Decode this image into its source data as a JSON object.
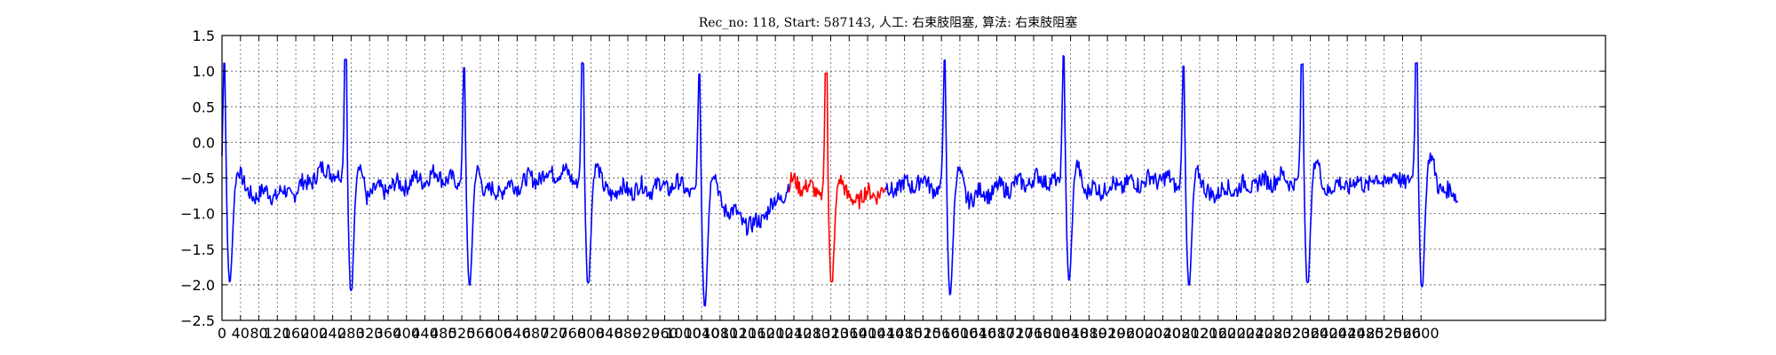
{
  "chart_data": {
    "type": "line",
    "title": "Rec_no: 118, Start: 587143, 人工: 右束肢阻塞, 算法: 右束肢阻塞",
    "xlabel": "",
    "ylabel": "",
    "xlim": [
      0,
      3000
    ],
    "ylim": [
      -2.5,
      1.5
    ],
    "x_ticks": [
      0,
      40,
      80,
      120,
      160,
      200,
      240,
      280,
      320,
      360,
      400,
      440,
      480,
      520,
      560,
      600,
      640,
      680,
      720,
      760,
      800,
      840,
      880,
      920,
      960,
      1000,
      1040,
      1080,
      1120,
      1160,
      1200,
      1240,
      1280,
      1320,
      1360,
      1400,
      1440,
      1480,
      1520,
      1560,
      1600,
      1640,
      1680,
      1720,
      1760,
      1800,
      1840,
      1880,
      1920,
      1960,
      2000,
      2040,
      2080,
      2120,
      2160,
      2200,
      2240,
      2280,
      2320,
      2360,
      2400,
      2440,
      2480,
      2520,
      2560,
      2600
    ],
    "y_ticks": [
      -2.5,
      -2.0,
      -1.5,
      -1.0,
      -0.5,
      0.0,
      0.5,
      1.0,
      1.5
    ],
    "y_tick_labels": [
      "−2.5",
      "−2.0",
      "−1.5",
      "−1.0",
      "−0.5",
      "0.0",
      "0.5",
      "1.0",
      "1.5"
    ],
    "grid": true,
    "beats": [
      {
        "r": 5,
        "amp": 1.12,
        "min": -2.0
      },
      {
        "r": 268,
        "amp": 1.17,
        "min": -2.1
      },
      {
        "r": 525,
        "amp": 1.07,
        "min": -2.05
      },
      {
        "r": 782,
        "amp": 1.12,
        "min": -2.0
      },
      {
        "r": 1035,
        "amp": 0.97,
        "min": -2.33
      },
      {
        "r": 1310,
        "amp": 0.98,
        "min": -2.0
      },
      {
        "r": 1567,
        "amp": 1.18,
        "min": -2.17
      },
      {
        "r": 1825,
        "amp": 1.22,
        "min": -1.97
      },
      {
        "r": 2085,
        "amp": 1.07,
        "min": -2.05
      },
      {
        "r": 2342,
        "amp": 1.1,
        "min": -2.0
      },
      {
        "r": 2590,
        "amp": 1.12,
        "min": -2.05
      }
    ],
    "baseline": [
      {
        "x": 40,
        "y": -0.72
      },
      {
        "x": 150,
        "y": -0.72
      },
      {
        "x": 230,
        "y": -0.35
      },
      {
        "x": 300,
        "y": -0.75
      },
      {
        "x": 470,
        "y": -0.45
      },
      {
        "x": 560,
        "y": -0.75
      },
      {
        "x": 730,
        "y": -0.4
      },
      {
        "x": 820,
        "y": -0.7
      },
      {
        "x": 990,
        "y": -0.6
      },
      {
        "x": 1080,
        "y": -0.85
      },
      {
        "x": 1150,
        "y": -1.2
      },
      {
        "x": 1240,
        "y": -0.55
      },
      {
        "x": 1340,
        "y": -0.85
      },
      {
        "x": 1420,
        "y": -0.7
      },
      {
        "x": 1520,
        "y": -0.55
      },
      {
        "x": 1600,
        "y": -0.8
      },
      {
        "x": 1780,
        "y": -0.5
      },
      {
        "x": 1860,
        "y": -0.7
      },
      {
        "x": 2040,
        "y": -0.5
      },
      {
        "x": 2120,
        "y": -0.75
      },
      {
        "x": 2300,
        "y": -0.5
      },
      {
        "x": 2380,
        "y": -0.65
      },
      {
        "x": 2550,
        "y": -0.5
      },
      {
        "x": 2640,
        "y": -0.6
      },
      {
        "x": 2680,
        "y": -0.8
      }
    ],
    "x_end": 2680,
    "series": [
      {
        "color": "#0000ff",
        "x_range": [
          0,
          1230
        ]
      },
      {
        "color": "#ff0000",
        "x_range": [
          1230,
          1440
        ]
      },
      {
        "color": "#0000ff",
        "x_range": [
          1440,
          2680
        ]
      }
    ]
  }
}
